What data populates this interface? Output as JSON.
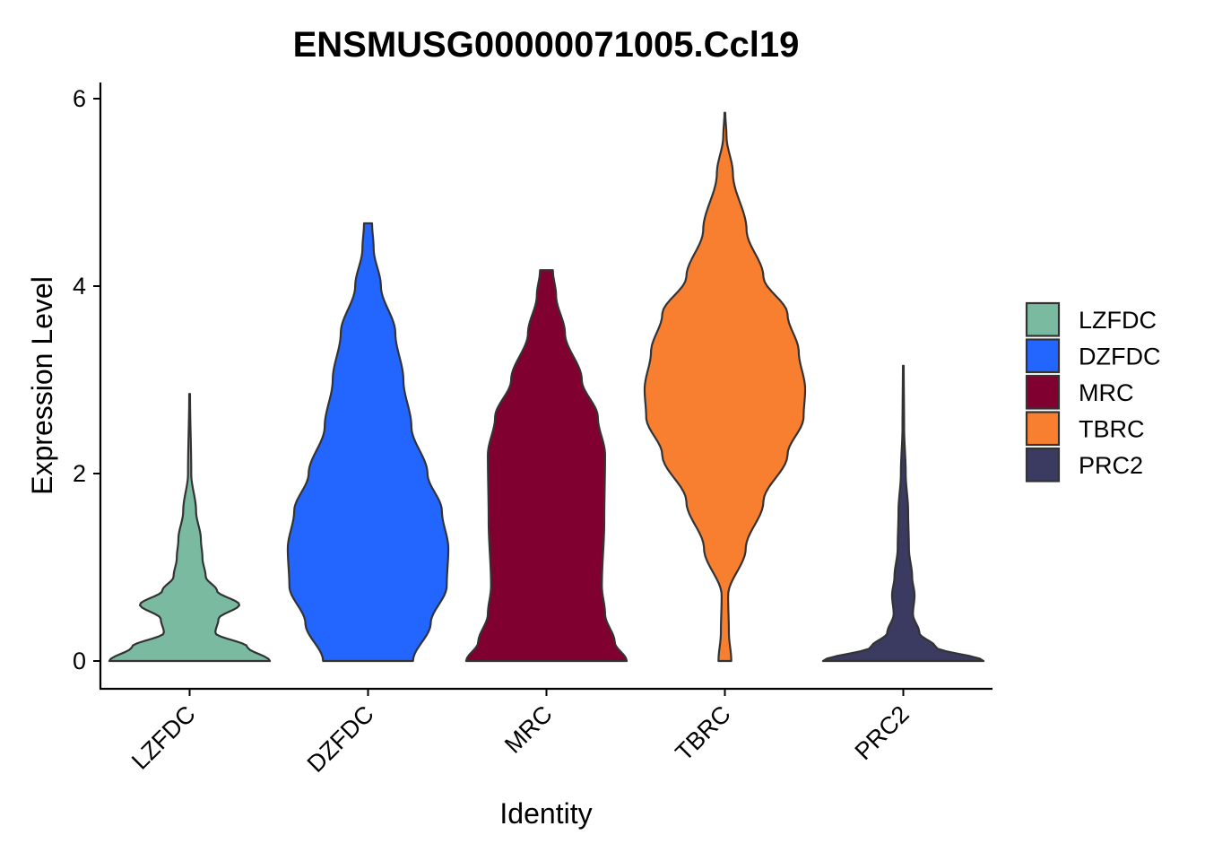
{
  "chart_data": {
    "type": "violin",
    "title": "ENSMUSG00000071005.Ccl19",
    "xlabel": "Identity",
    "ylabel": "Expression Level",
    "ylim": [
      -0.3,
      6.1
    ],
    "yticks": [
      0,
      2,
      4,
      6
    ],
    "grid": false,
    "legend_position": "right",
    "categories": [
      "LZFDC",
      "DZFDC",
      "MRC",
      "TBRC",
      "PRC2"
    ],
    "series": [
      {
        "name": "LZFDC",
        "color": "#79BAA0",
        "max": 2.85,
        "density": [
          [
            0,
            1.0
          ],
          [
            0.15,
            0.72
          ],
          [
            0.3,
            0.32
          ],
          [
            0.45,
            0.36
          ],
          [
            0.6,
            0.62
          ],
          [
            0.75,
            0.34
          ],
          [
            0.9,
            0.2
          ],
          [
            1.1,
            0.16
          ],
          [
            1.3,
            0.14
          ],
          [
            1.6,
            0.08
          ],
          [
            2.0,
            0.02
          ],
          [
            2.85,
            0.005
          ]
        ]
      },
      {
        "name": "DZFDC",
        "color": "#2266FF",
        "max": 4.67,
        "density": [
          [
            0,
            0.56
          ],
          [
            0.4,
            0.78
          ],
          [
            0.8,
            0.98
          ],
          [
            1.2,
            1.0
          ],
          [
            1.6,
            0.92
          ],
          [
            2.0,
            0.74
          ],
          [
            2.5,
            0.54
          ],
          [
            3.0,
            0.44
          ],
          [
            3.5,
            0.34
          ],
          [
            4.0,
            0.16
          ],
          [
            4.4,
            0.07
          ],
          [
            4.67,
            0.05
          ]
        ]
      },
      {
        "name": "MRC",
        "color": "#800030",
        "max": 4.17,
        "density": [
          [
            0,
            1.0
          ],
          [
            0.2,
            0.85
          ],
          [
            0.5,
            0.73
          ],
          [
            0.8,
            0.69
          ],
          [
            1.5,
            0.72
          ],
          [
            2.2,
            0.73
          ],
          [
            2.6,
            0.64
          ],
          [
            3.0,
            0.44
          ],
          [
            3.5,
            0.23
          ],
          [
            3.9,
            0.12
          ],
          [
            4.17,
            0.08
          ]
        ]
      },
      {
        "name": "TBRC",
        "color": "#F97F30",
        "max": 5.85,
        "density": [
          [
            0,
            0.08
          ],
          [
            0.3,
            0.05
          ],
          [
            0.7,
            0.04
          ],
          [
            1.2,
            0.26
          ],
          [
            1.7,
            0.48
          ],
          [
            2.2,
            0.78
          ],
          [
            2.6,
            0.98
          ],
          [
            2.9,
            1.0
          ],
          [
            3.3,
            0.92
          ],
          [
            3.7,
            0.78
          ],
          [
            4.1,
            0.48
          ],
          [
            4.6,
            0.27
          ],
          [
            5.2,
            0.1
          ],
          [
            5.6,
            0.02
          ],
          [
            5.85,
            0.005
          ]
        ]
      },
      {
        "name": "PRC2",
        "color": "#3B3A60",
        "max": 3.15,
        "density": [
          [
            0,
            1.0
          ],
          [
            0.15,
            0.4
          ],
          [
            0.3,
            0.2
          ],
          [
            0.5,
            0.12
          ],
          [
            0.7,
            0.14
          ],
          [
            0.9,
            0.11
          ],
          [
            1.2,
            0.07
          ],
          [
            1.6,
            0.06
          ],
          [
            2.0,
            0.03
          ],
          [
            2.5,
            0.01
          ],
          [
            3.15,
            0.005
          ]
        ]
      }
    ]
  }
}
